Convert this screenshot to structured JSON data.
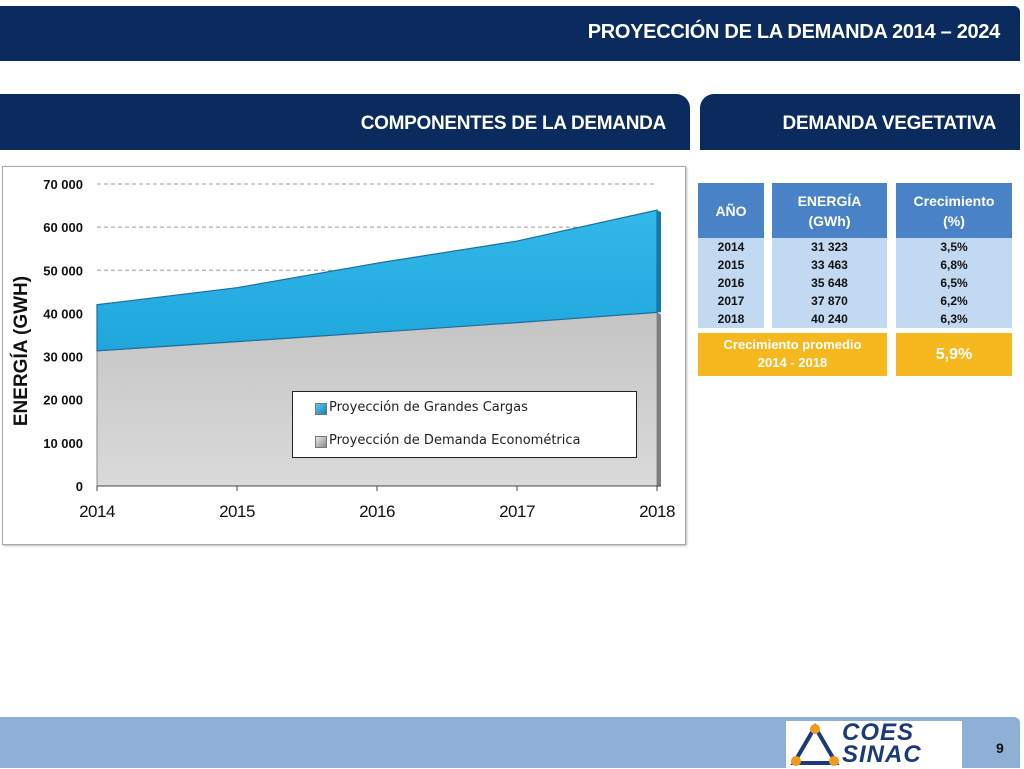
{
  "header": {
    "title": "PROYECCIÓN DE LA DEMANDA 2014 – 2024"
  },
  "sections": {
    "left": "COMPONENTES DE  LA DEMANDA",
    "right": "DEMANDA VEGETATIVA"
  },
  "chart_data": {
    "type": "area",
    "x": [
      2014,
      2015,
      2016,
      2017,
      2018
    ],
    "xticks": [
      "2014",
      "2015",
      "2016",
      "2017",
      "2018"
    ],
    "ylabel": "ENERGÍA (GWH)",
    "ylim": [
      0,
      70000
    ],
    "yticks": [
      "0",
      "10 000",
      "20 000",
      "30 000",
      "40 000",
      "50 000",
      "60 000",
      "70 000"
    ],
    "grid": true,
    "legend_position": "bottom-right",
    "stacked": true,
    "series": [
      {
        "name": "Proyección de Demanda Econométrica",
        "values": [
          31323,
          33463,
          35648,
          37870,
          40240
        ],
        "color": "#c8c8c8"
      },
      {
        "name": "Proyección de Grandes Cargas",
        "values": [
          10700,
          12500,
          16000,
          18900,
          23700
        ],
        "color": "#28b2e6"
      }
    ],
    "legend_order": [
      1,
      0
    ]
  },
  "table": {
    "headers": [
      "AÑO",
      "ENERGÍA\n(GWh)",
      "Crecimiento\n(%)"
    ],
    "header_lines": {
      "energia": [
        "ENERGÍA",
        "(GWh)"
      ],
      "crec": [
        "Crecimiento",
        "(%)"
      ]
    },
    "years": [
      "2014",
      "2015",
      "2016",
      "2017",
      "2018"
    ],
    "energia": [
      "31 323",
      "33 463",
      "35 648",
      "37 870",
      "40 240"
    ],
    "crecimiento": [
      "3,5%",
      "6,8%",
      "6,5%",
      "6,2%",
      "6,3%"
    ],
    "avg_label_1": "Crecimiento promedio",
    "avg_label_2": "2014 - 2018",
    "avg_value": "5,9%"
  },
  "footer": {
    "logo_top": "COES",
    "logo_bottom": "SINAC",
    "page": "9"
  },
  "colors": {
    "navy": "#0b2a5e",
    "table_head": "#4a82c8",
    "table_body": "#c3d8f1",
    "gold": "#f5b81e"
  }
}
